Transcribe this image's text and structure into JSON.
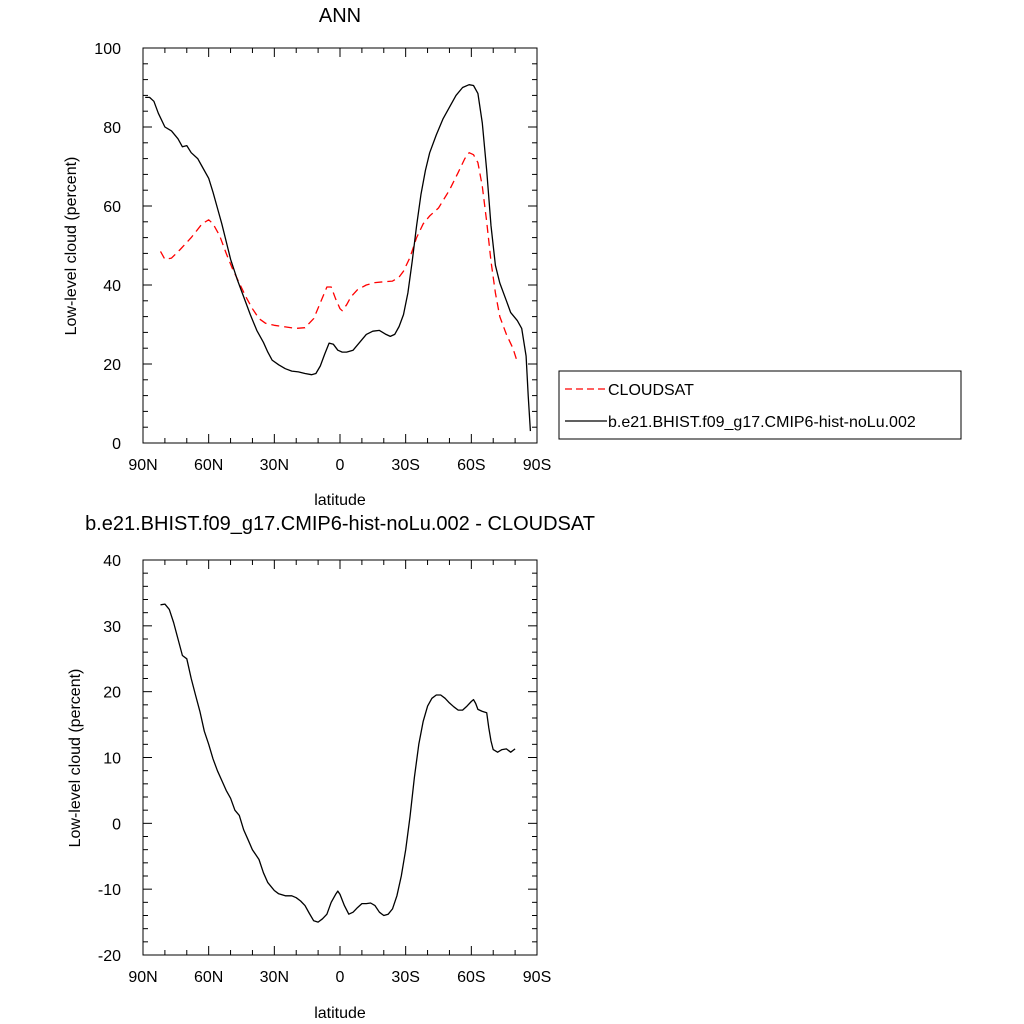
{
  "chart_data": [
    {
      "type": "line",
      "title": "ANN",
      "xlabel": "latitude",
      "ylabel": "Low-level cloud (percent)",
      "xlim": [
        90,
        -90
      ],
      "ylim": [
        0,
        100
      ],
      "xticks": [
        90,
        60,
        30,
        0,
        -30,
        -60,
        -90
      ],
      "xtick_labels": [
        "90N",
        "60N",
        "30N",
        "0",
        "30S",
        "60S",
        "90S"
      ],
      "yticks": [
        0,
        20,
        40,
        60,
        80,
        100
      ],
      "ytick_labels": [
        "0",
        "20",
        "40",
        "60",
        "80",
        "100"
      ],
      "grid": false,
      "legend_position": "right",
      "series": [
        {
          "name": "CLOUDSAT",
          "color": "#ff0000",
          "style": "dashed",
          "points": [
            [
              82,
              48.5
            ],
            [
              80,
              46.5
            ],
            [
              77,
              46.8
            ],
            [
              73,
              49
            ],
            [
              68,
              52
            ],
            [
              63,
              55.5
            ],
            [
              60,
              56.5
            ],
            [
              58,
              55.5
            ],
            [
              55,
              52.5
            ],
            [
              52,
              48
            ],
            [
              49,
              44
            ],
            [
              46,
              40.5
            ],
            [
              43,
              37
            ],
            [
              40,
              34
            ],
            [
              37,
              31.5
            ],
            [
              34,
              30.3
            ],
            [
              30,
              29.8
            ],
            [
              25,
              29.4
            ],
            [
              20,
              29
            ],
            [
              16,
              29.2
            ],
            [
              12,
              31.5
            ],
            [
              9,
              35.5
            ],
            [
              6,
              39.5
            ],
            [
              4,
              39.5
            ],
            [
              2,
              36.5
            ],
            [
              0,
              34
            ],
            [
              -1,
              33.5
            ],
            [
              -3,
              35
            ],
            [
              -5,
              37
            ],
            [
              -8,
              38.8
            ],
            [
              -12,
              40
            ],
            [
              -16,
              40.6
            ],
            [
              -20,
              40.8
            ],
            [
              -24,
              41
            ],
            [
              -27,
              42
            ],
            [
              -29,
              43.5
            ],
            [
              -32,
              47
            ],
            [
              -35,
              52
            ],
            [
              -38,
              55.5
            ],
            [
              -41,
              57.5
            ],
            [
              -45,
              59.5
            ],
            [
              -50,
              64
            ],
            [
              -54,
              68.5
            ],
            [
              -57,
              72
            ],
            [
              -59,
              73.5
            ],
            [
              -61,
              73
            ],
            [
              -63,
              71
            ],
            [
              -65,
              65
            ],
            [
              -67,
              56
            ],
            [
              -69,
              46
            ],
            [
              -71,
              38
            ],
            [
              -73,
              32
            ],
            [
              -76,
              27.5
            ],
            [
              -79,
              24
            ],
            [
              -81,
              20.5
            ]
          ]
        },
        {
          "name": "b.e21.BHIST.f09_g17.CMIP6-hist-noLu.002",
          "color": "#000000",
          "style": "solid",
          "points": [
            [
              89,
              87.5
            ],
            [
              87,
              87.5
            ],
            [
              85,
              86.5
            ],
            [
              83,
              83.5
            ],
            [
              80,
              80
            ],
            [
              77,
              79
            ],
            [
              74,
              77
            ],
            [
              72,
              75
            ],
            [
              70,
              75.3
            ],
            [
              68,
              73.5
            ],
            [
              65,
              72
            ],
            [
              63,
              70
            ],
            [
              60,
              67
            ],
            [
              58,
              63.5
            ],
            [
              56,
              59.5
            ],
            [
              54,
              55.5
            ],
            [
              52,
              51
            ],
            [
              50,
              46.5
            ],
            [
              47,
              41.5
            ],
            [
              44,
              37
            ],
            [
              41,
              32.5
            ],
            [
              38,
              28.5
            ],
            [
              35,
              25.5
            ],
            [
              33,
              23
            ],
            [
              31,
              21
            ],
            [
              28,
              19.8
            ],
            [
              25,
              18.8
            ],
            [
              22,
              18.2
            ],
            [
              19,
              18
            ],
            [
              16,
              17.6
            ],
            [
              13,
              17.3
            ],
            [
              11,
              17.6
            ],
            [
              9,
              19.5
            ],
            [
              7,
              22.5
            ],
            [
              5,
              25.3
            ],
            [
              3,
              25
            ],
            [
              1,
              23.5
            ],
            [
              -1,
              23
            ],
            [
              -3,
              23
            ],
            [
              -6,
              23.5
            ],
            [
              -9,
              25.5
            ],
            [
              -12,
              27.5
            ],
            [
              -15,
              28.3
            ],
            [
              -18,
              28.5
            ],
            [
              -21,
              27.5
            ],
            [
              -23,
              27
            ],
            [
              -25,
              27.5
            ],
            [
              -27,
              29.5
            ],
            [
              -29,
              32.5
            ],
            [
              -31,
              38
            ],
            [
              -33,
              46
            ],
            [
              -35,
              55
            ],
            [
              -37,
              63
            ],
            [
              -39,
              69
            ],
            [
              -41,
              73.5
            ],
            [
              -44,
              78
            ],
            [
              -47,
              82
            ],
            [
              -50,
              85
            ],
            [
              -53,
              88
            ],
            [
              -56,
              90
            ],
            [
              -59,
              90.7
            ],
            [
              -61,
              90.5
            ],
            [
              -63,
              88.5
            ],
            [
              -65,
              81
            ],
            [
              -67,
              69
            ],
            [
              -69,
              55
            ],
            [
              -71,
              45
            ],
            [
              -73,
              40.5
            ],
            [
              -76,
              36
            ],
            [
              -78,
              33
            ],
            [
              -81,
              31
            ],
            [
              -83,
              29
            ],
            [
              -85,
              22
            ],
            [
              -86,
              12
            ],
            [
              -87,
              3
            ]
          ]
        }
      ]
    },
    {
      "type": "line",
      "title": "b.e21.BHIST.f09_g17.CMIP6-hist-noLu.002 - CLOUDSAT",
      "xlabel": "latitude",
      "ylabel": "Low-level cloud (percent)",
      "xlim": [
        90,
        -90
      ],
      "ylim": [
        -20,
        40
      ],
      "xticks": [
        90,
        60,
        30,
        0,
        -30,
        -60,
        -90
      ],
      "xtick_labels": [
        "90N",
        "60N",
        "30N",
        "0",
        "30S",
        "60S",
        "90S"
      ],
      "yticks": [
        -20,
        -10,
        0,
        10,
        20,
        30,
        40
      ],
      "ytick_labels": [
        "-20",
        "-10",
        "0",
        "10",
        "20",
        "30",
        "40"
      ],
      "grid": false,
      "series": [
        {
          "color": "#000000",
          "style": "solid",
          "points": [
            [
              82,
              33.2
            ],
            [
              80,
              33.3
            ],
            [
              78,
              32.5
            ],
            [
              76,
              30.5
            ],
            [
              74,
              28
            ],
            [
              72,
              25.5
            ],
            [
              70,
              25
            ],
            [
              68,
              22
            ],
            [
              66,
              19.5
            ],
            [
              64,
              17
            ],
            [
              62,
              14
            ],
            [
              60,
              12
            ],
            [
              58,
              9.8
            ],
            [
              56,
              8
            ],
            [
              54,
              6.5
            ],
            [
              52,
              5
            ],
            [
              50,
              3.8
            ],
            [
              48,
              2
            ],
            [
              46,
              1.2
            ],
            [
              44,
              -1
            ],
            [
              42,
              -2.5
            ],
            [
              40,
              -4
            ],
            [
              37,
              -5.5
            ],
            [
              35,
              -7.5
            ],
            [
              33,
              -9
            ],
            [
              30,
              -10.2
            ],
            [
              28,
              -10.7
            ],
            [
              25,
              -11
            ],
            [
              22,
              -11
            ],
            [
              20,
              -11.3
            ],
            [
              18,
              -11.8
            ],
            [
              16,
              -12.5
            ],
            [
              14,
              -13.7
            ],
            [
              12,
              -14.8
            ],
            [
              10,
              -15
            ],
            [
              8,
              -14.5
            ],
            [
              6,
              -13.8
            ],
            [
              4,
              -12
            ],
            [
              2,
              -10.8
            ],
            [
              1,
              -10.3
            ],
            [
              0,
              -10.8
            ],
            [
              -2,
              -12.5
            ],
            [
              -4,
              -13.8
            ],
            [
              -6,
              -13.5
            ],
            [
              -8,
              -12.8
            ],
            [
              -10,
              -12.2
            ],
            [
              -12,
              -12.2
            ],
            [
              -14,
              -12.1
            ],
            [
              -16,
              -12.5
            ],
            [
              -18,
              -13.5
            ],
            [
              -20,
              -14
            ],
            [
              -22,
              -13.8
            ],
            [
              -24,
              -13
            ],
            [
              -26,
              -11
            ],
            [
              -28,
              -8
            ],
            [
              -30,
              -4
            ],
            [
              -32,
              1
            ],
            [
              -34,
              7
            ],
            [
              -36,
              12
            ],
            [
              -38,
              15.5
            ],
            [
              -40,
              17.8
            ],
            [
              -42,
              19
            ],
            [
              -44,
              19.5
            ],
            [
              -46,
              19.5
            ],
            [
              -48,
              19
            ],
            [
              -50,
              18.3
            ],
            [
              -52,
              17.7
            ],
            [
              -54,
              17.2
            ],
            [
              -56,
              17.2
            ],
            [
              -58,
              17.8
            ],
            [
              -60,
              18.5
            ],
            [
              -61,
              18.8
            ],
            [
              -62,
              18.2
            ],
            [
              -63,
              17.3
            ],
            [
              -65,
              17
            ],
            [
              -67,
              16.8
            ],
            [
              -68,
              14.5
            ],
            [
              -69,
              12.5
            ],
            [
              -70,
              11.2
            ],
            [
              -72,
              10.8
            ],
            [
              -74,
              11.2
            ],
            [
              -76,
              11.3
            ],
            [
              -78,
              10.8
            ],
            [
              -80,
              11.3
            ]
          ]
        }
      ]
    }
  ]
}
